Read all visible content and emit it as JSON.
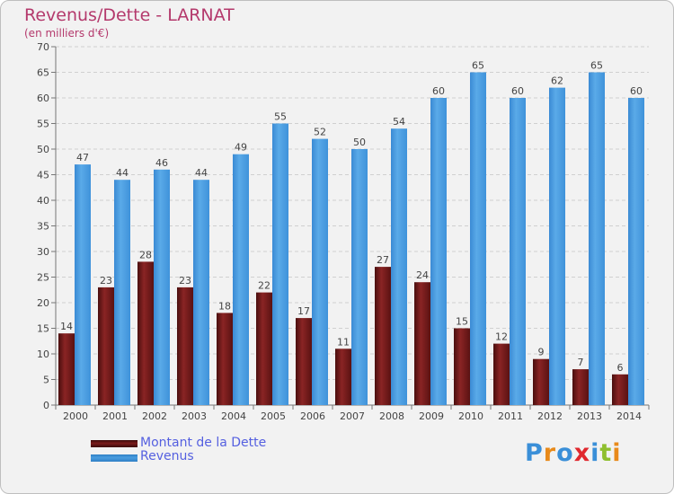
{
  "title": "Revenus/Dette - LARNAT",
  "subtitle": "(en milliers d'€)",
  "legend": [
    {
      "label": "Montant de la Dette",
      "color": "#7a1b1b"
    },
    {
      "label": "Revenus",
      "color": "#4a9de0"
    }
  ],
  "logo": {
    "letters": [
      "P",
      "r",
      "o",
      "x",
      "i",
      "t",
      "i"
    ],
    "colors": [
      "#3a8fd8",
      "#e88a1a",
      "#3a8fd8",
      "#e0282e",
      "#3a8fd8",
      "#8fbf2f",
      "#e88a1a"
    ]
  },
  "chart_data": {
    "type": "bar",
    "title": "Revenus/Dette - LARNAT",
    "subtitle": "(en milliers d'€)",
    "categories": [
      "2000",
      "2001",
      "2002",
      "2003",
      "2004",
      "2005",
      "2006",
      "2007",
      "2008",
      "2009",
      "2010",
      "2011",
      "2012",
      "2013",
      "2014"
    ],
    "series": [
      {
        "name": "Montant de la Dette",
        "values": [
          14,
          23,
          28,
          23,
          18,
          22,
          17,
          11,
          27,
          24,
          15,
          12,
          9,
          7,
          6
        ],
        "color": "#7a1b1b"
      },
      {
        "name": "Revenus",
        "values": [
          47,
          44,
          46,
          44,
          49,
          55,
          52,
          50,
          54,
          60,
          65,
          60,
          62,
          65,
          60
        ],
        "color": "#4a9de0"
      }
    ],
    "ylim": [
      0,
      70
    ],
    "yticks": [
      0,
      5,
      10,
      15,
      20,
      25,
      30,
      35,
      40,
      45,
      50,
      55,
      60,
      65,
      70
    ],
    "grid": true,
    "legend_position": "bottom-left"
  }
}
